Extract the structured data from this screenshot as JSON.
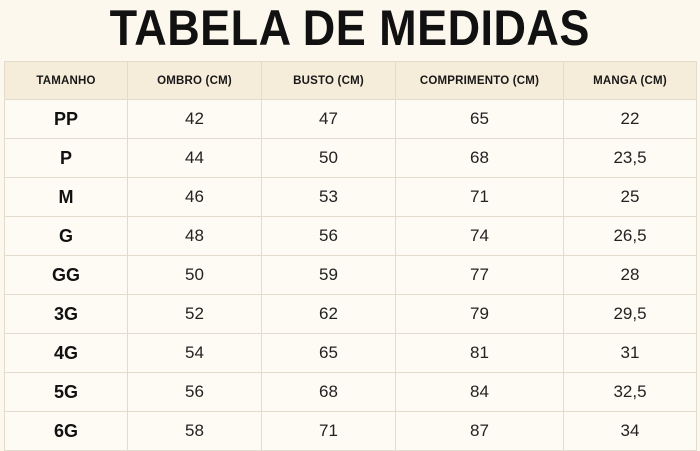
{
  "title": "TABELA DE MEDIDAS",
  "table": {
    "headers": [
      "TAMANHO",
      "OMBRO (CM)",
      "BUSTO (CM)",
      "COMPRIMENTO (CM)",
      "MANGA (CM)"
    ],
    "rows": [
      [
        "PP",
        "42",
        "47",
        "65",
        "22"
      ],
      [
        "P",
        "44",
        "50",
        "68",
        "23,5"
      ],
      [
        "M",
        "46",
        "53",
        "71",
        "25"
      ],
      [
        "G",
        "48",
        "56",
        "74",
        "26,5"
      ],
      [
        "GG",
        "50",
        "59",
        "77",
        "28"
      ],
      [
        "3G",
        "52",
        "62",
        "79",
        "29,5"
      ],
      [
        "4G",
        "54",
        "65",
        "81",
        "31"
      ],
      [
        "5G",
        "56",
        "68",
        "84",
        "32,5"
      ],
      [
        "6G",
        "58",
        "71",
        "87",
        "34"
      ]
    ]
  },
  "colors": {
    "background": "#fdf8ee",
    "header_background": "#f6ecda",
    "cell_background": "#fefbf4",
    "border": "#e3dccd",
    "text": "#141414"
  }
}
